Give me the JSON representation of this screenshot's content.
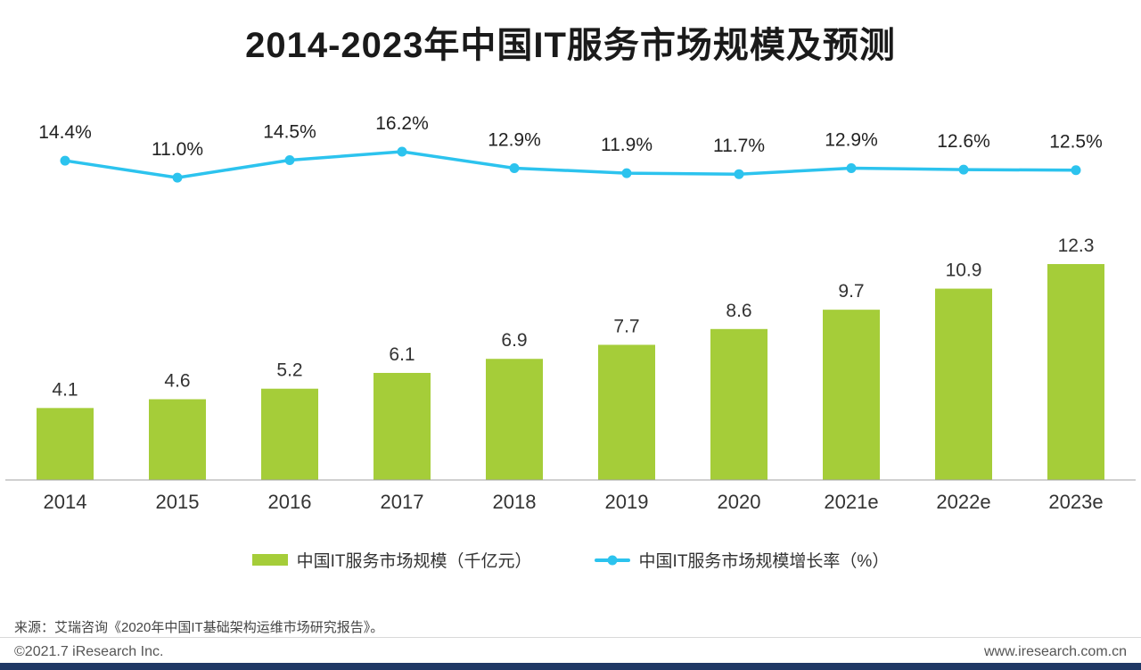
{
  "title": "2014-2023年中国IT服务市场规模及预测",
  "chart_data": {
    "type": "bar+line",
    "title": "2014-2023年中国IT服务市场规模及预测",
    "categories": [
      "2014",
      "2015",
      "2016",
      "2017",
      "2018",
      "2019",
      "2020",
      "2021e",
      "2022e",
      "2023e"
    ],
    "series": [
      {
        "name": "中国IT服务市场规模（千亿元）",
        "type": "bar",
        "values": [
          4.1,
          4.6,
          5.2,
          6.1,
          6.9,
          7.7,
          8.6,
          9.7,
          10.9,
          12.3
        ],
        "color": "#a5cd39",
        "value_suffix": ""
      },
      {
        "name": "中国IT服务市场规模增长率（%）",
        "type": "line",
        "values": [
          14.4,
          11.0,
          14.5,
          16.2,
          12.9,
          11.9,
          11.7,
          12.9,
          12.6,
          12.5
        ],
        "color": "#2cc3ee",
        "value_suffix": "%"
      }
    ],
    "xlabel": "",
    "ylabel": "",
    "grid": false,
    "legend_position": "bottom",
    "value_labels_shown": true
  },
  "legend": {
    "bar_label": "中国IT服务市场规模（千亿元）",
    "line_label": "中国IT服务市场规模增长率（%）"
  },
  "source": "来源：艾瑞咨询《2020年中国IT基础架构运维市场研究报告》。",
  "footer": {
    "copyright": "©2021.7 iResearch Inc.",
    "website": "www.iresearch.com.cn"
  },
  "colors": {
    "bar": "#a5cd39",
    "line": "#2cc3ee",
    "footer_bar": "#1f3865",
    "axis": "#a0a0a0",
    "title_text": "#1a1a1a"
  }
}
